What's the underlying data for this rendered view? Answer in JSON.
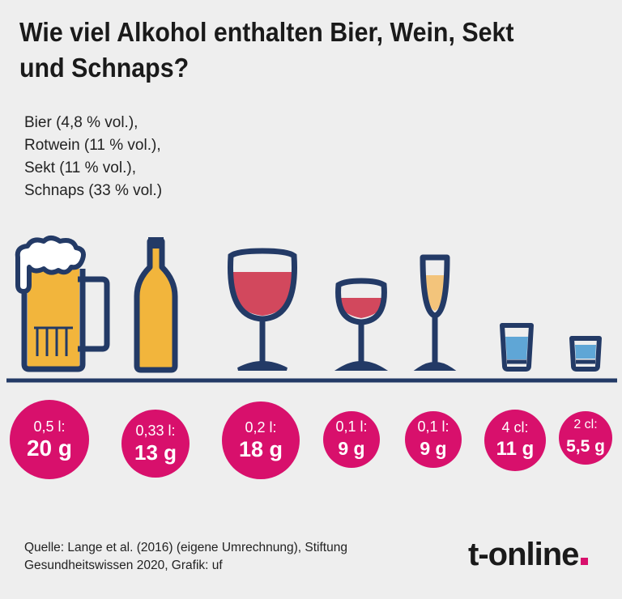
{
  "title": "Wie viel Alkohol enthalten Bier, Wein, Sekt und Schnaps?",
  "legend": [
    "Bier (4,8 % vol.),",
    "Rotwein (11 % vol.),",
    "Sekt (11 % vol.),",
    "Schnaps (33 % vol.)"
  ],
  "drinks": [
    {
      "name": "beer-mug",
      "volume": "0,5 l:",
      "grams": "20 g"
    },
    {
      "name": "beer-bottle",
      "volume": "0,33 l:",
      "grams": "13 g"
    },
    {
      "name": "red-wine-large",
      "volume": "0,2 l:",
      "grams": "18 g"
    },
    {
      "name": "red-wine-small",
      "volume": "0,1 l:",
      "grams": "9 g"
    },
    {
      "name": "champagne-flute",
      "volume": "0,1 l:",
      "grams": "9 g"
    },
    {
      "name": "shot-glass-large",
      "volume": "4 cl:",
      "grams": "11 g"
    },
    {
      "name": "shot-glass-small",
      "volume": "2 cl:",
      "grams": "5,5 g"
    }
  ],
  "source": [
    "Quelle: Lange et al. (2016) (eigene Umrechnung), Stiftung",
    "Gesundheitswissen 2020, Grafik: uf"
  ],
  "logo": "t-online",
  "colors": {
    "accent": "#d8106c",
    "outline": "#233a66",
    "beer": "#f2b53c",
    "wine": "#d2485d",
    "sekt": "#f3c47b",
    "schnaps": "#5fa6d6",
    "background": "#eeeeee"
  }
}
